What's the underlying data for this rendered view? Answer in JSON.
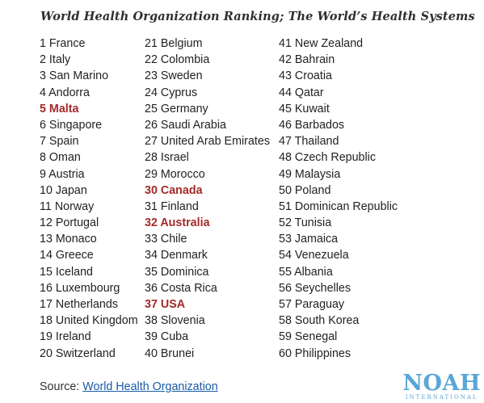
{
  "title": "World Health Organization Ranking; The World’s Health Systems",
  "highlight_color": "#a52a2a",
  "columns": [
    [
      {
        "text": "1 France",
        "hl": false
      },
      {
        "text": "2 Italy",
        "hl": false
      },
      {
        "text": "3 San Marino",
        "hl": false
      },
      {
        "text": "4 Andorra",
        "hl": false
      },
      {
        "text": "5 Malta",
        "hl": true
      },
      {
        "text": "6 Singapore",
        "hl": false
      },
      {
        "text": "7 Spain",
        "hl": false
      },
      {
        "text": "8 Oman",
        "hl": false
      },
      {
        "text": "9 Austria",
        "hl": false
      },
      {
        "text": "10 Japan",
        "hl": false
      },
      {
        "text": "11 Norway",
        "hl": false
      },
      {
        "text": "12 Portugal",
        "hl": false
      },
      {
        "text": "13 Monaco",
        "hl": false
      },
      {
        "text": "14 Greece",
        "hl": false
      },
      {
        "text": "15 Iceland",
        "hl": false
      },
      {
        "text": "16 Luxembourg",
        "hl": false
      },
      {
        "text": "17 Netherlands",
        "hl": false
      },
      {
        "text": "18 United Kingdom",
        "hl": false
      },
      {
        "text": "19 Ireland",
        "hl": false
      },
      {
        "text": "20 Switzerland",
        "hl": false
      }
    ],
    [
      {
        "text": "21 Belgium",
        "hl": false
      },
      {
        "text": "22 Colombia",
        "hl": false
      },
      {
        "text": "23 Sweden",
        "hl": false
      },
      {
        "text": "24 Cyprus",
        "hl": false
      },
      {
        "text": "25 Germany",
        "hl": false
      },
      {
        "text": "26 Saudi Arabia",
        "hl": false
      },
      {
        "text": "27 United Arab Emirates",
        "hl": false
      },
      {
        "text": "28 Israel",
        "hl": false
      },
      {
        "text": "29 Morocco",
        "hl": false
      },
      {
        "text": "30 Canada",
        "hl": true
      },
      {
        "text": "31 Finland",
        "hl": false
      },
      {
        "text": "32 Australia",
        "hl": true
      },
      {
        "text": "33 Chile",
        "hl": false
      },
      {
        "text": "34 Denmark",
        "hl": false
      },
      {
        "text": "35 Dominica",
        "hl": false
      },
      {
        "text": "36 Costa Rica",
        "hl": false
      },
      {
        "text": "37 USA",
        "hl": true
      },
      {
        "text": "38 Slovenia",
        "hl": false
      },
      {
        "text": "39 Cuba",
        "hl": false
      },
      {
        "text": "40 Brunei",
        "hl": false
      }
    ],
    [
      {
        "text": "41 New Zealand",
        "hl": false
      },
      {
        "text": "42 Bahrain",
        "hl": false
      },
      {
        "text": "43 Croatia",
        "hl": false
      },
      {
        "text": "44 Qatar",
        "hl": false
      },
      {
        "text": "45 Kuwait",
        "hl": false
      },
      {
        "text": "46 Barbados",
        "hl": false
      },
      {
        "text": "47 Thailand",
        "hl": false
      },
      {
        "text": "48 Czech Republic",
        "hl": false
      },
      {
        "text": "49 Malaysia",
        "hl": false
      },
      {
        "text": "50 Poland",
        "hl": false
      },
      {
        "text": "51 Dominican Republic",
        "hl": false
      },
      {
        "text": "52 Tunisia",
        "hl": false
      },
      {
        "text": "53 Jamaica",
        "hl": false
      },
      {
        "text": "54 Venezuela",
        "hl": false
      },
      {
        "text": "55 Albania",
        "hl": false
      },
      {
        "text": "56 Seychelles",
        "hl": false
      },
      {
        "text": "57 Paraguay",
        "hl": false
      },
      {
        "text": "58 South Korea",
        "hl": false
      },
      {
        "text": "59 Senegal",
        "hl": false
      },
      {
        "text": "60 Philippines",
        "hl": false
      }
    ]
  ],
  "source": {
    "label": "Source:",
    "link_text": "World Health Organization"
  },
  "logo": {
    "main": "NOAH",
    "sub": "INTERNATIONAL",
    "color": "#5aa6d6"
  }
}
